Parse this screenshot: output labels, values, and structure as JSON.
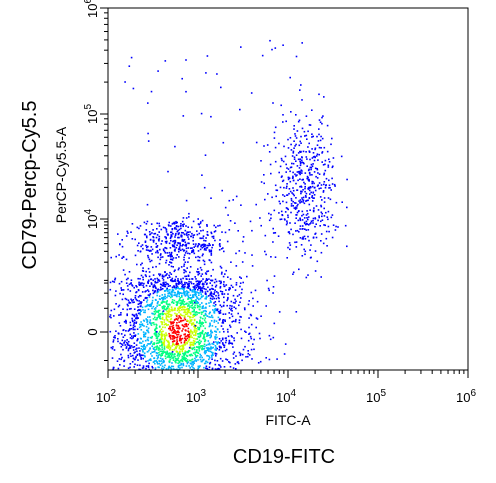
{
  "chart_data": {
    "type": "scatter",
    "title": "",
    "xlabel": "FITC-A",
    "ylabel": "PerCP-Cy5.5-A",
    "outer_xlabel": "CD19-FITC",
    "outer_ylabel": "CD79-Percp-Cy5.5",
    "x_scale": "log",
    "y_scale": "biexponential",
    "xlim": [
      100,
      1000000
    ],
    "ylim": [
      -400,
      1000000
    ],
    "grid": false,
    "legend": "none",
    "density_colors": [
      "#0000ff",
      "#00b4ff",
      "#00ff80",
      "#c8ff00",
      "#ff0000"
    ],
    "x_ticks": [
      {
        "value": 100,
        "base": "10",
        "exp": "2"
      },
      {
        "value": 1000,
        "base": "10",
        "exp": "3"
      },
      {
        "value": 10000,
        "base": "10",
        "exp": "4"
      },
      {
        "value": 100000,
        "base": "10",
        "exp": "5"
      },
      {
        "value": 1000000,
        "base": "10",
        "exp": "6"
      }
    ],
    "y_ticks": [
      {
        "value": 0,
        "base": "0",
        "exp": ""
      },
      {
        "value": 10000,
        "base": "10",
        "exp": "4"
      },
      {
        "value": 100000,
        "base": "10",
        "exp": "5"
      },
      {
        "value": 1000000,
        "base": "10",
        "exp": "6"
      }
    ],
    "populations": [
      {
        "center_x": 600,
        "center_y": 0,
        "spread_x_decades": 0.35,
        "spread_y": 600,
        "count": 2600,
        "density": "high"
      },
      {
        "center_x": 600,
        "center_y": 4000,
        "spread_x_decades": 0.3,
        "spread_y": 2500,
        "count": 420,
        "density": "low"
      },
      {
        "center_x": 15000,
        "center_y": 20000,
        "spread_x_decades": 0.18,
        "spread_y_decades": 0.35,
        "count": 520,
        "density": "low"
      }
    ]
  }
}
